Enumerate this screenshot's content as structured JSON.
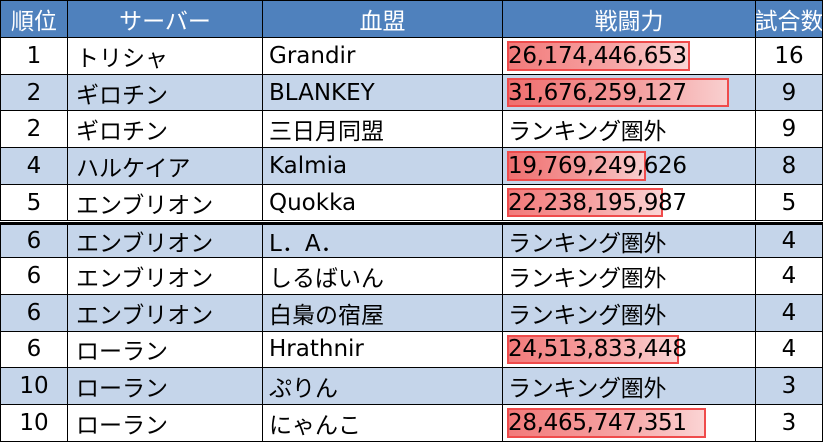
{
  "headers": {
    "rank": "順位",
    "server": "サーバー",
    "guild": "血盟",
    "power": "戦闘力",
    "wins": "試合数"
  },
  "out_of_rank_label": "ランキング圏外",
  "bar_color": "#ef4b4b",
  "header_color": "#4f81bd",
  "alt_row_color": "#c5d5ea",
  "rows": [
    {
      "rank": "1",
      "server": "トリシャ",
      "guild": "Grandir",
      "power": "26,174,446,653",
      "power_value": 26174446653,
      "wins": "16"
    },
    {
      "rank": "2",
      "server": "ギロチン",
      "guild": "BLANKEY",
      "power": "31,676,259,127",
      "power_value": 31676259127,
      "wins": "9"
    },
    {
      "rank": "2",
      "server": "ギロチン",
      "guild": "三日月同盟",
      "power": "ランキング圏外",
      "power_value": null,
      "wins": "9"
    },
    {
      "rank": "4",
      "server": "ハルケイア",
      "guild": "Kalmia",
      "power": "19,769,249,626",
      "power_value": 19769249626,
      "wins": "8"
    },
    {
      "rank": "5",
      "server": "エンブリオン",
      "guild": "Quokka",
      "power": "22,238,195,987",
      "power_value": 22238195987,
      "wins": "5"
    },
    {
      "rank": "6",
      "server": "エンブリオン",
      "guild": "L．A．",
      "power": "ランキング圏外",
      "power_value": null,
      "wins": "4"
    },
    {
      "rank": "6",
      "server": "エンブリオン",
      "guild": "しるばいん",
      "power": "ランキング圏外",
      "power_value": null,
      "wins": "4"
    },
    {
      "rank": "6",
      "server": "エンブリオン",
      "guild": "白梟の宿屋",
      "power": "ランキング圏外",
      "power_value": null,
      "wins": "4"
    },
    {
      "rank": "6",
      "server": "ローラン",
      "guild": "Hrathnir",
      "power": "24,513,833,448",
      "power_value": 24513833448,
      "wins": "4"
    },
    {
      "rank": "10",
      "server": "ローラン",
      "guild": "ぷりん",
      "power": "ランキング圏外",
      "power_value": null,
      "wins": "3"
    },
    {
      "rank": "10",
      "server": "ローラン",
      "guild": "にゃんこ",
      "power": "28,465,747,351",
      "power_value": 28465747351,
      "wins": "3"
    }
  ]
}
